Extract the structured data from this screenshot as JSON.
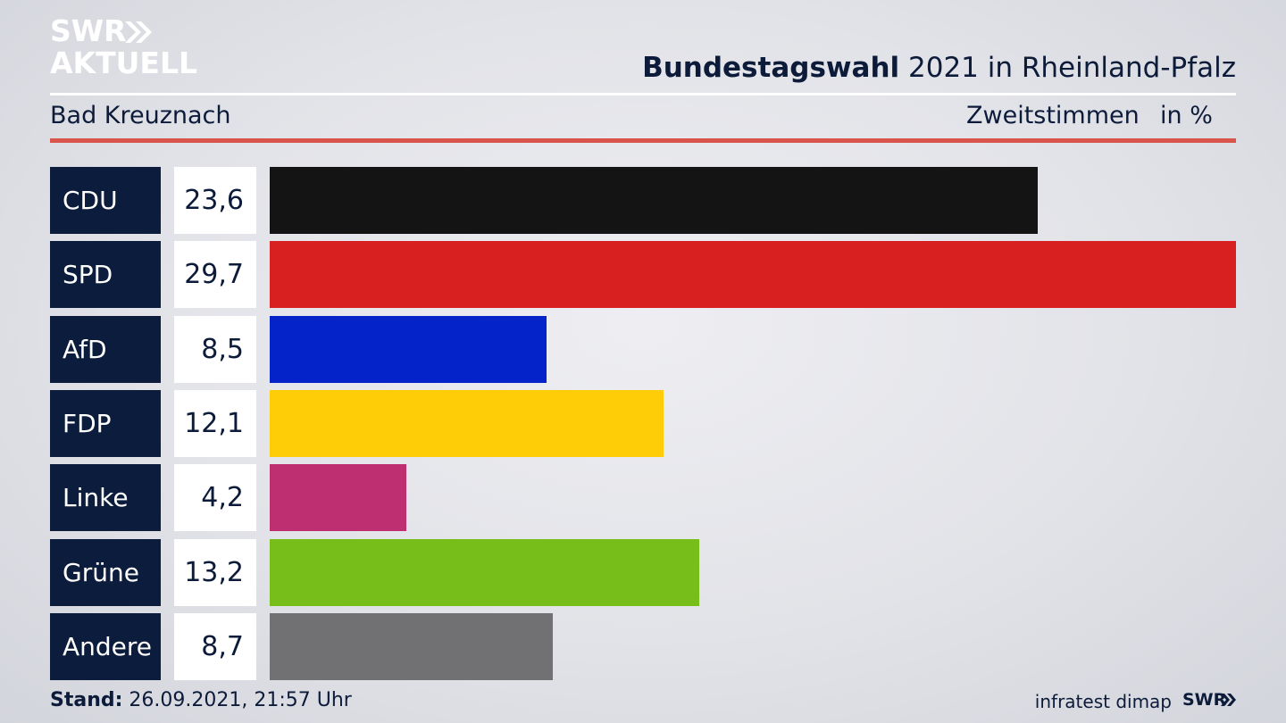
{
  "logo": {
    "line1": "SWR",
    "line2": "AKTUELL"
  },
  "header": {
    "title_strong": "Bundestagswahl",
    "title_rest": " 2021 in Rheinland-Pfalz"
  },
  "subheader": {
    "region": "Bad Kreuznach",
    "vote_type": "Zweitstimmen",
    "unit": "in %"
  },
  "footer": {
    "stand_label": "Stand:",
    "stand_value": " 26.09.2021, 21:57 Uhr",
    "source": "infratest dimap",
    "brand": "SWR"
  },
  "colors": {
    "navy": "#0c1c3c",
    "accent_red": "#d9544a"
  },
  "chart_data": {
    "type": "bar",
    "orientation": "horizontal",
    "categories": [
      "CDU",
      "SPD",
      "AfD",
      "FDP",
      "Linke",
      "Grüne",
      "Andere"
    ],
    "values": [
      23.6,
      29.7,
      8.5,
      12.1,
      4.2,
      13.2,
      8.7
    ],
    "value_labels": [
      "23,6",
      "29,7",
      "8,5",
      "12,1",
      "4,2",
      "13,2",
      "8,7"
    ],
    "colors": [
      "#141414",
      "#d92020",
      "#0423c9",
      "#ffcc08",
      "#be2f72",
      "#78be1a",
      "#717174"
    ],
    "xlim": [
      0,
      29.7
    ],
    "grid": false,
    "legend": "none"
  }
}
